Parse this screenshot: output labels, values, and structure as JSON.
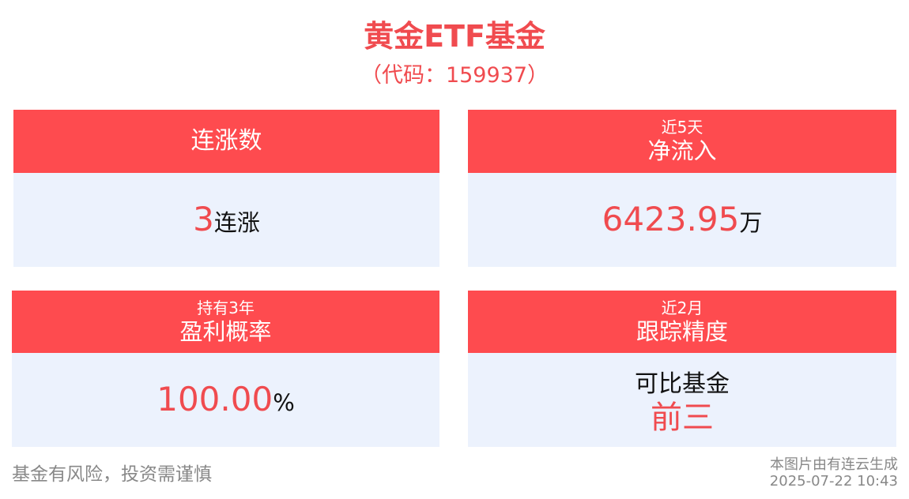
{
  "header": {
    "title": "黄金ETF基金",
    "code": "（代码：159937）"
  },
  "cards": {
    "streak": {
      "label": "连涨数",
      "value": "3",
      "unit": "连涨"
    },
    "net_inflow": {
      "sublabel": "近5天",
      "label": "净流入",
      "value": "6423.95",
      "unit": "万"
    },
    "profit_prob": {
      "sublabel": "持有3年",
      "label": "盈利概率",
      "value": "100.00",
      "unit": "%"
    },
    "tracking": {
      "sublabel": "近2月",
      "label": "跟踪精度",
      "comparison": "可比基金",
      "rank": "前三"
    }
  },
  "footer": {
    "disclaimer": "基金有风险，投资需谨慎",
    "credit": "本图片由有连云生成",
    "timestamp": "2025-07-22 10:43"
  },
  "colors": {
    "accent_red": "#fe4b4f",
    "value_red": "#f04b4f",
    "body_bg": "#ecf2fd"
  }
}
